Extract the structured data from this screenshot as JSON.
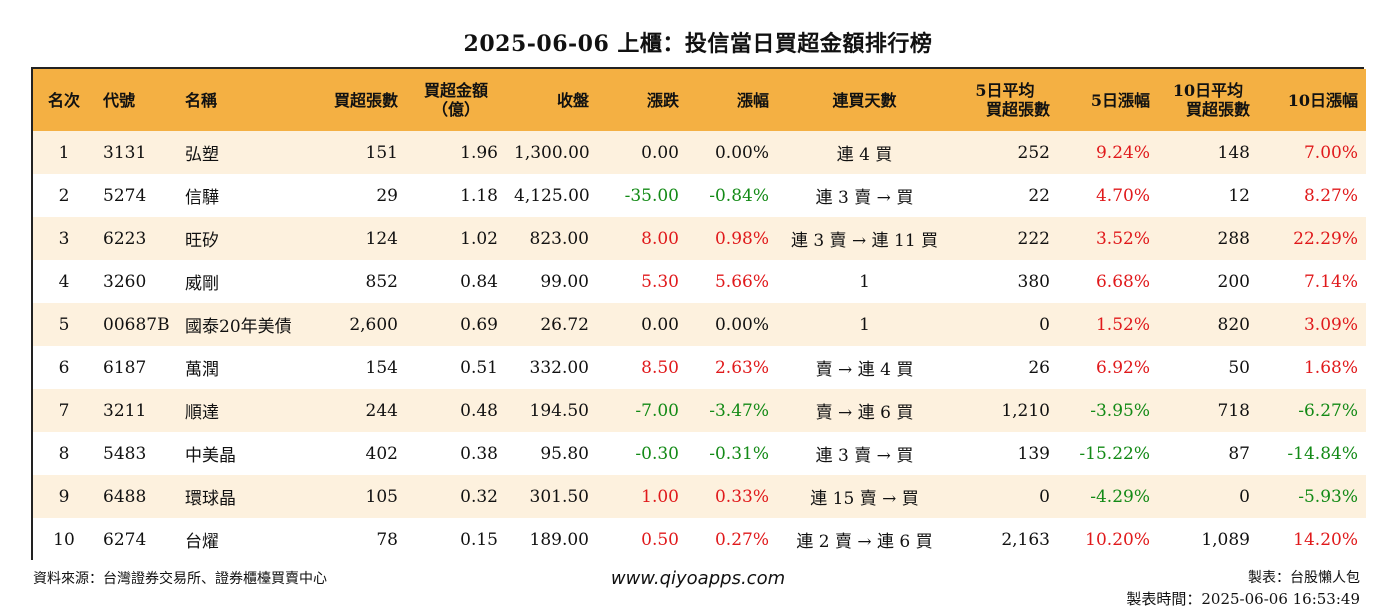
{
  "title": "2025-06-06 上櫃：投信當日買超金額排行榜",
  "headers": {
    "rank": "名次",
    "code": "代號",
    "name": "名稱",
    "buy_shares": "買超張數",
    "buy_amount_1": "買超金額",
    "buy_amount_2": "（億）",
    "close": "收盤",
    "change": "漲跌",
    "change_pct": "漲幅",
    "streak": "連買天數",
    "avg5_1": "5日平均",
    "avg5_2": "買超張數",
    "pct5": "5日漲幅",
    "avg10_1": "10日平均",
    "avg10_2": "買超張數",
    "pct10": "10日漲幅"
  },
  "rows": [
    {
      "rank": "1",
      "code": "3131",
      "name": "弘塑",
      "buy_shares": "151",
      "buy_amount": "1.96",
      "close": "1,300.00",
      "change": "0.00",
      "change_pct": "0.00%",
      "streak": "連 4 買",
      "avg5": "252",
      "pct5": "9.24%",
      "avg10": "148",
      "pct10": "7.00%"
    },
    {
      "rank": "2",
      "code": "5274",
      "name": "信驊",
      "buy_shares": "29",
      "buy_amount": "1.18",
      "close": "4,125.00",
      "change": "-35.00",
      "change_pct": "-0.84%",
      "streak": "連 3 賣 → 買",
      "avg5": "22",
      "pct5": "4.70%",
      "avg10": "12",
      "pct10": "8.27%"
    },
    {
      "rank": "3",
      "code": "6223",
      "name": "旺矽",
      "buy_shares": "124",
      "buy_amount": "1.02",
      "close": "823.00",
      "change": "8.00",
      "change_pct": "0.98%",
      "streak": "連 3 賣 → 連 11 買",
      "avg5": "222",
      "pct5": "3.52%",
      "avg10": "288",
      "pct10": "22.29%"
    },
    {
      "rank": "4",
      "code": "3260",
      "name": "威剛",
      "buy_shares": "852",
      "buy_amount": "0.84",
      "close": "99.00",
      "change": "5.30",
      "change_pct": "5.66%",
      "streak": "1",
      "avg5": "380",
      "pct5": "6.68%",
      "avg10": "200",
      "pct10": "7.14%"
    },
    {
      "rank": "5",
      "code": "00687B",
      "name": "國泰20年美債",
      "buy_shares": "2,600",
      "buy_amount": "0.69",
      "close": "26.72",
      "change": "0.00",
      "change_pct": "0.00%",
      "streak": "1",
      "avg5": "0",
      "pct5": "1.52%",
      "avg10": "820",
      "pct10": "3.09%"
    },
    {
      "rank": "6",
      "code": "6187",
      "name": "萬潤",
      "buy_shares": "154",
      "buy_amount": "0.51",
      "close": "332.00",
      "change": "8.50",
      "change_pct": "2.63%",
      "streak": "賣 → 連 4 買",
      "avg5": "26",
      "pct5": "6.92%",
      "avg10": "50",
      "pct10": "1.68%"
    },
    {
      "rank": "7",
      "code": "3211",
      "name": "順達",
      "buy_shares": "244",
      "buy_amount": "0.48",
      "close": "194.50",
      "change": "-7.00",
      "change_pct": "-3.47%",
      "streak": "賣 → 連 6 買",
      "avg5": "1,210",
      "pct5": "-3.95%",
      "avg10": "718",
      "pct10": "-6.27%"
    },
    {
      "rank": "8",
      "code": "5483",
      "name": "中美晶",
      "buy_shares": "402",
      "buy_amount": "0.38",
      "close": "95.80",
      "change": "-0.30",
      "change_pct": "-0.31%",
      "streak": "連 3 賣 → 買",
      "avg5": "139",
      "pct5": "-15.22%",
      "avg10": "87",
      "pct10": "-14.84%"
    },
    {
      "rank": "9",
      "code": "6488",
      "name": "環球晶",
      "buy_shares": "105",
      "buy_amount": "0.32",
      "close": "301.50",
      "change": "1.00",
      "change_pct": "0.33%",
      "streak": "連 15 賣 → 買",
      "avg5": "0",
      "pct5": "-4.29%",
      "avg10": "0",
      "pct10": "-5.93%"
    },
    {
      "rank": "10",
      "code": "6274",
      "name": "台燿",
      "buy_shares": "78",
      "buy_amount": "0.15",
      "close": "189.00",
      "change": "0.50",
      "change_pct": "0.27%",
      "streak": "連 2 賣 → 連 6 買",
      "avg5": "2,163",
      "pct5": "10.20%",
      "avg10": "1,089",
      "pct10": "14.20%"
    }
  ],
  "footer": {
    "source": "資料來源：台灣證券交易所、證券櫃檯買賣中心",
    "url": "www.qiyoapps.com",
    "maker": "製表：台股懶人包",
    "time": "製表時間：2025-06-06 16:53:49"
  },
  "colors": {
    "header_bg": "#f4b043",
    "odd_row_bg": "#fdf1de",
    "positive": "#e0191b",
    "negative": "#138a16"
  }
}
